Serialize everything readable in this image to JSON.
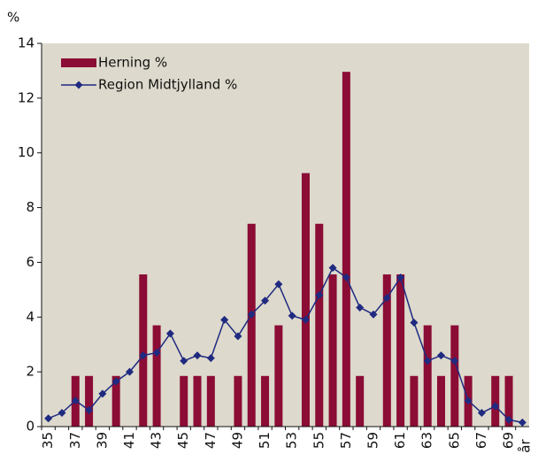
{
  "chart_data": {
    "type": "bar_line",
    "y_label": "%",
    "x_label": "år",
    "categories": [
      "35",
      null,
      "37",
      null,
      "39",
      null,
      "41",
      null,
      "43",
      null,
      "45",
      null,
      "47",
      null,
      "49",
      null,
      "51",
      null,
      "53",
      null,
      "55",
      null,
      "57",
      null,
      "59",
      null,
      "61",
      null,
      "63",
      null,
      "65",
      null,
      "67",
      null,
      "69",
      null
    ],
    "series": [
      {
        "name": "Herning %",
        "kind": "bar",
        "color": "#8b0c35",
        "values": [
          0,
          0,
          1.85,
          1.85,
          0,
          1.85,
          0,
          5.56,
          3.7,
          0,
          1.85,
          1.85,
          1.85,
          0,
          1.85,
          7.41,
          1.85,
          3.7,
          0,
          9.26,
          7.41,
          5.56,
          12.96,
          1.85,
          0,
          5.56,
          5.56,
          1.85,
          3.7,
          1.85,
          3.7,
          1.85,
          0,
          1.85,
          1.85,
          0
        ]
      },
      {
        "name": "Region Midtjylland %",
        "kind": "line",
        "color": "#1f2a80",
        "values": [
          0.3,
          0.5,
          0.95,
          0.6,
          1.2,
          1.65,
          2.0,
          2.6,
          2.7,
          3.4,
          2.4,
          2.6,
          2.5,
          3.9,
          3.3,
          4.1,
          4.6,
          5.2,
          4.05,
          3.9,
          4.8,
          5.8,
          5.45,
          4.35,
          4.1,
          4.7,
          5.45,
          3.8,
          2.4,
          2.6,
          2.4,
          0.95,
          0.5,
          0.75,
          0.25,
          0.15
        ]
      }
    ],
    "ylim": [
      0,
      14
    ],
    "yticks": [
      0,
      2,
      4,
      6,
      8,
      10,
      12,
      14
    ],
    "legend": "upper left",
    "plot_background": "#ddd9cc"
  }
}
